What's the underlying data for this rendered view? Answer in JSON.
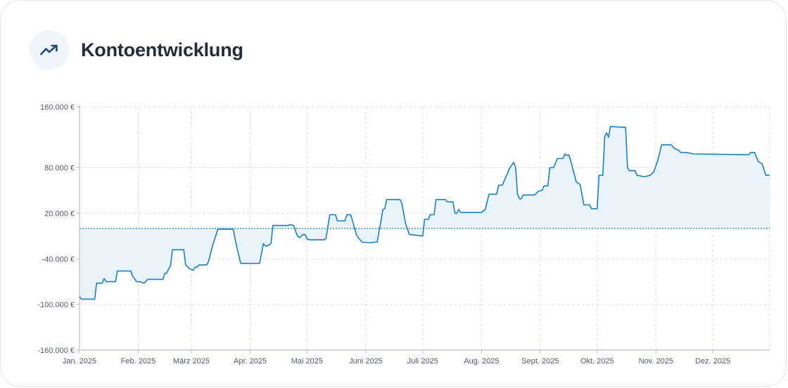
{
  "header": {
    "title": "Kontoentwicklung",
    "icon": "trending-up-icon"
  },
  "colors": {
    "line": "#1c7fc1",
    "area": "#e8f3fc",
    "grid": "#dcdfe4",
    "axis": "#b9bec6",
    "icon": "#1e4b78",
    "icon_bg": "#eef5fd"
  },
  "chart_data": {
    "type": "area",
    "title": "",
    "xlabel": "",
    "ylabel": "",
    "x_tick_labels": [
      "Jan. 2025",
      "Feb. 2025",
      "März 2025",
      "Apr. 2025",
      "Mai 2025",
      "Juni 2025",
      "Juli 2025",
      "Aug. 2025",
      "Sept. 2025",
      "Okt. 2025",
      "Nov. 2025",
      "Dez. 2025"
    ],
    "x_range": [
      "2025-01-01",
      "2025-12-31"
    ],
    "y_tick_labels": [
      "160.000 €",
      "80.000 €",
      "20.000 €",
      "-40.000 €",
      "-100.000 €",
      "-160.000 €"
    ],
    "y_ticks": [
      160000,
      80000,
      20000,
      -40000,
      -100000,
      -160000
    ],
    "ylim": [
      -160000,
      160000
    ],
    "baseline": 0,
    "grid": true,
    "series": [
      {
        "points": [
          [
            "2025-01-01",
            -90000
          ],
          [
            "2025-01-02",
            -93000
          ],
          [
            "2025-01-09",
            -93000
          ],
          [
            "2025-01-10",
            -72000
          ],
          [
            "2025-01-13",
            -72000
          ],
          [
            "2025-01-14",
            -66000
          ],
          [
            "2025-01-15",
            -70000
          ],
          [
            "2025-01-20",
            -70000
          ],
          [
            "2025-01-21",
            -56000
          ],
          [
            "2025-01-28",
            -56000
          ],
          [
            "2025-01-29",
            -63000
          ],
          [
            "2025-01-30",
            -66000
          ],
          [
            "2025-01-31",
            -70000
          ],
          [
            "2025-02-02",
            -70000
          ],
          [
            "2025-02-04",
            -72000
          ],
          [
            "2025-02-06",
            -67000
          ],
          [
            "2025-02-14",
            -67000
          ],
          [
            "2025-02-15",
            -59000
          ],
          [
            "2025-02-16",
            -59000
          ],
          [
            "2025-02-17",
            -53000
          ],
          [
            "2025-02-18",
            -49000
          ],
          [
            "2025-02-19",
            -28000
          ],
          [
            "2025-02-25",
            -28000
          ],
          [
            "2025-02-26",
            -48000
          ],
          [
            "2025-02-28",
            -53000
          ],
          [
            "2025-03-02",
            -55000
          ],
          [
            "2025-03-03",
            -51000
          ],
          [
            "2025-03-04",
            -51000
          ],
          [
            "2025-03-05",
            -48000
          ],
          [
            "2025-03-09",
            -48000
          ],
          [
            "2025-03-10",
            -44000
          ],
          [
            "2025-03-12",
            -24000
          ],
          [
            "2025-03-15",
            -1000
          ],
          [
            "2025-03-23",
            -1000
          ],
          [
            "2025-03-25",
            -25000
          ],
          [
            "2025-03-27",
            -46000
          ],
          [
            "2025-04-06",
            -46000
          ],
          [
            "2025-04-08",
            -20000
          ],
          [
            "2025-04-09",
            -23000
          ],
          [
            "2025-04-10",
            -23000
          ],
          [
            "2025-04-12",
            -20000
          ],
          [
            "2025-04-13",
            4000
          ],
          [
            "2025-04-21",
            4000
          ],
          [
            "2025-04-22",
            5000
          ],
          [
            "2025-04-24",
            4000
          ],
          [
            "2025-04-25",
            -4000
          ],
          [
            "2025-04-26",
            -10000
          ],
          [
            "2025-04-27",
            -12000
          ],
          [
            "2025-04-29",
            -8000
          ],
          [
            "2025-04-30",
            -8000
          ],
          [
            "2025-05-01",
            -14000
          ],
          [
            "2025-05-03",
            -15000
          ],
          [
            "2025-05-10",
            -15000
          ],
          [
            "2025-05-11",
            -13000
          ],
          [
            "2025-05-13",
            18000
          ],
          [
            "2025-05-16",
            18000
          ],
          [
            "2025-05-17",
            10000
          ],
          [
            "2025-05-21",
            10000
          ],
          [
            "2025-05-22",
            18000
          ],
          [
            "2025-05-24",
            18000
          ],
          [
            "2025-05-25",
            10000
          ],
          [
            "2025-05-27",
            -8000
          ],
          [
            "2025-05-28",
            -12000
          ],
          [
            "2025-05-30",
            -18000
          ],
          [
            "2025-06-04",
            -19000
          ],
          [
            "2025-06-05",
            -18000
          ],
          [
            "2025-06-07",
            -18000
          ],
          [
            "2025-06-09",
            10000
          ],
          [
            "2025-06-10",
            25000
          ],
          [
            "2025-06-11",
            26000
          ],
          [
            "2025-06-12",
            38000
          ],
          [
            "2025-06-19",
            38000
          ],
          [
            "2025-06-20",
            33000
          ],
          [
            "2025-06-22",
            6000
          ],
          [
            "2025-06-24",
            -8000
          ],
          [
            "2025-07-01",
            -10000
          ],
          [
            "2025-07-02",
            12000
          ],
          [
            "2025-07-04",
            12000
          ],
          [
            "2025-07-05",
            18000
          ],
          [
            "2025-07-07",
            18000
          ],
          [
            "2025-07-08",
            38000
          ],
          [
            "2025-07-13",
            38000
          ],
          [
            "2025-07-14",
            35000
          ],
          [
            "2025-07-17",
            35000
          ],
          [
            "2025-07-18",
            20000
          ],
          [
            "2025-07-19",
            20000
          ],
          [
            "2025-07-20",
            25000
          ],
          [
            "2025-07-21",
            21000
          ],
          [
            "2025-08-01",
            21000
          ],
          [
            "2025-08-03",
            25000
          ],
          [
            "2025-08-05",
            45000
          ],
          [
            "2025-08-09",
            45000
          ],
          [
            "2025-08-10",
            57000
          ],
          [
            "2025-08-12",
            57000
          ],
          [
            "2025-08-16",
            80000
          ],
          [
            "2025-08-18",
            87000
          ],
          [
            "2025-08-19",
            80000
          ],
          [
            "2025-08-20",
            45000
          ],
          [
            "2025-08-21",
            39000
          ],
          [
            "2025-08-22",
            39000
          ],
          [
            "2025-08-23",
            44000
          ],
          [
            "2025-08-29",
            44000
          ],
          [
            "2025-08-31",
            49000
          ],
          [
            "2025-09-02",
            50000
          ],
          [
            "2025-09-03",
            56000
          ],
          [
            "2025-09-05",
            56000
          ],
          [
            "2025-09-06",
            80000
          ],
          [
            "2025-09-08",
            80000
          ],
          [
            "2025-09-10",
            92000
          ],
          [
            "2025-09-13",
            92000
          ],
          [
            "2025-09-14",
            98000
          ],
          [
            "2025-09-15",
            96000
          ],
          [
            "2025-09-16",
            97000
          ],
          [
            "2025-09-17",
            90000
          ],
          [
            "2025-09-18",
            80000
          ],
          [
            "2025-09-20",
            61000
          ],
          [
            "2025-09-22",
            58000
          ],
          [
            "2025-09-24",
            31000
          ],
          [
            "2025-09-27",
            31000
          ],
          [
            "2025-09-28",
            26000
          ],
          [
            "2025-10-01",
            26000
          ],
          [
            "2025-10-02",
            70000
          ],
          [
            "2025-10-04",
            70000
          ],
          [
            "2025-10-05",
            121000
          ],
          [
            "2025-10-06",
            126000
          ],
          [
            "2025-10-07",
            120000
          ],
          [
            "2025-10-08",
            134000
          ],
          [
            "2025-10-16",
            133000
          ],
          [
            "2025-10-17",
            80000
          ],
          [
            "2025-10-18",
            76000
          ],
          [
            "2025-10-21",
            76000
          ],
          [
            "2025-10-22",
            70000
          ],
          [
            "2025-10-26",
            68000
          ],
          [
            "2025-10-29",
            70000
          ],
          [
            "2025-10-31",
            75000
          ],
          [
            "2025-11-02",
            90000
          ],
          [
            "2025-11-04",
            110000
          ],
          [
            "2025-11-09",
            110000
          ],
          [
            "2025-11-11",
            105000
          ],
          [
            "2025-11-13",
            103000
          ],
          [
            "2025-11-14",
            100000
          ],
          [
            "2025-11-17",
            100000
          ],
          [
            "2025-11-21",
            98000
          ],
          [
            "2025-12-20",
            97000
          ],
          [
            "2025-12-21",
            100000
          ],
          [
            "2025-12-23",
            100000
          ],
          [
            "2025-12-25",
            88000
          ],
          [
            "2025-12-27",
            85000
          ],
          [
            "2025-12-29",
            70000
          ],
          [
            "2025-12-31",
            70000
          ]
        ]
      }
    ]
  }
}
